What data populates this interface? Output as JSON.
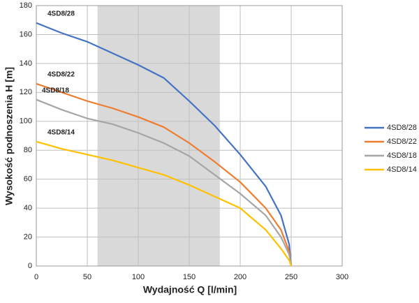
{
  "chart_data": {
    "type": "line",
    "x_label": "Wydajność Q [l/min]",
    "y_label": "Wysokość podnoszenia H [m]",
    "x": [
      0,
      25,
      50,
      75,
      100,
      125,
      150,
      175,
      200,
      225,
      240,
      248,
      250
    ],
    "series": [
      {
        "name": "4SD8/28",
        "color": "#4472c4",
        "values": [
          168,
          161,
          155,
          147,
          139,
          130,
          114,
          97,
          77,
          55,
          35,
          15,
          0
        ]
      },
      {
        "name": "4SD8/22",
        "color": "#ed7d31",
        "values": [
          126,
          120,
          114,
          109,
          103,
          96,
          85,
          72,
          58,
          40,
          25,
          10,
          0
        ]
      },
      {
        "name": "4SD8/18",
        "color": "#a5a5a5",
        "values": [
          115,
          108,
          102,
          98,
          92,
          85,
          76,
          63,
          50,
          35,
          20,
          8,
          0
        ]
      },
      {
        "name": "4SD8/14",
        "color": "#ffc000",
        "values": [
          86,
          81,
          77,
          73,
          68,
          63,
          56,
          48,
          40,
          25,
          12,
          4,
          0
        ]
      }
    ],
    "shaded_range": [
      60,
      180
    ],
    "xlim": [
      0,
      300
    ],
    "xticks": [
      0,
      50,
      100,
      150,
      200,
      250,
      300
    ],
    "ylim": [
      0,
      180
    ],
    "yticks": [
      0,
      20,
      40,
      60,
      80,
      100,
      120,
      140,
      160,
      180
    ],
    "grid": true,
    "legend": "right"
  }
}
